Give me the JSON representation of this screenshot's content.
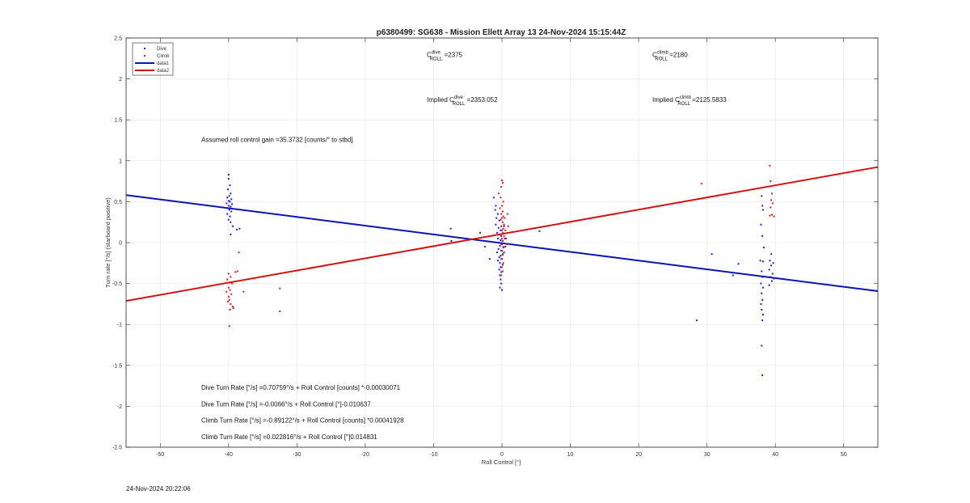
{
  "chart_data": {
    "type": "scatter",
    "title": "p6380499: SG638 - Mission Ellett Array 13 24-Nov-2024 15:15:44Z",
    "xlabel": "Roll Control [°]",
    "ylabel": "Turn rate [°/s] (starboard positive)",
    "xlim": [
      -55,
      55
    ],
    "ylim": [
      -2.5,
      2.5
    ],
    "xticks": [
      -50,
      -40,
      -30,
      -20,
      -10,
      0,
      10,
      20,
      30,
      40,
      50
    ],
    "yticks": [
      -2.5,
      -2,
      -1.5,
      -1,
      -0.5,
      0,
      0.5,
      1,
      1.5,
      2,
      2.5
    ],
    "xtick_labels": [
      "-50",
      "-40",
      "-30",
      "-20",
      "-10",
      "0",
      "10",
      "20",
      "30",
      "40",
      "50"
    ],
    "ytick_labels": [
      "-2.5",
      "-2",
      "-1.5",
      "-1",
      "-0.5",
      "0",
      "0.5",
      "1",
      "1.5",
      "2",
      "2.5"
    ],
    "grid": true,
    "legend_placement": "top-left",
    "series": [
      {
        "name": "Dive",
        "kind": "points",
        "color": "#1f1fd6",
        "points": [
          [
            -40,
            0.83
          ],
          [
            -40,
            0.78
          ],
          [
            -39.8,
            0.7
          ],
          [
            -40.1,
            0.65
          ],
          [
            -39.7,
            0.6
          ],
          [
            -39.9,
            0.57
          ],
          [
            -40.2,
            0.55
          ],
          [
            -39.6,
            0.53
          ],
          [
            -40,
            0.51
          ],
          [
            -39.8,
            0.5
          ],
          [
            -40.3,
            0.48
          ],
          [
            -39.5,
            0.47
          ],
          [
            -40,
            0.45
          ],
          [
            -39.7,
            0.44
          ],
          [
            -40.1,
            0.42
          ],
          [
            -39.9,
            0.4
          ],
          [
            -39.6,
            0.38
          ],
          [
            -40.2,
            0.35
          ],
          [
            -39.8,
            0.32
          ],
          [
            -40,
            0.28
          ],
          [
            -39.7,
            0.25
          ],
          [
            -39.4,
            0.2
          ],
          [
            -38.8,
            0.16
          ],
          [
            -39.7,
            0.1
          ],
          [
            -38.4,
            0.17
          ],
          [
            -7.5,
            0.17
          ],
          [
            -7.4,
            0.02
          ],
          [
            -3.2,
            0.12
          ],
          [
            -2.5,
            -0.05
          ],
          [
            -1.8,
            -0.2
          ],
          [
            -1.2,
            0.55
          ],
          [
            -0.9,
            0.45
          ],
          [
            -1,
            0.4
          ],
          [
            -0.6,
            0.35
          ],
          [
            -0.8,
            0.3
          ],
          [
            -0.4,
            0.27
          ],
          [
            -0.9,
            0.22
          ],
          [
            -0.5,
            0.18
          ],
          [
            -0.2,
            0.15
          ],
          [
            -0.7,
            0.12
          ],
          [
            -0.3,
            0.1
          ],
          [
            -0.1,
            0.08
          ],
          [
            -0.6,
            0.05
          ],
          [
            -0.2,
            0.03
          ],
          [
            0.1,
            0.02
          ],
          [
            -0.4,
            0
          ],
          [
            0,
            -0.02
          ],
          [
            -0.3,
            -0.04
          ],
          [
            0.2,
            -0.06
          ],
          [
            -0.5,
            -0.08
          ],
          [
            -0.1,
            -0.1
          ],
          [
            -0.7,
            -0.12
          ],
          [
            0.1,
            -0.14
          ],
          [
            -0.2,
            -0.16
          ],
          [
            -0.4,
            -0.18
          ],
          [
            0,
            -0.2
          ],
          [
            -0.6,
            -0.22
          ],
          [
            -0.3,
            -0.25
          ],
          [
            0.1,
            -0.27
          ],
          [
            -0.2,
            -0.3
          ],
          [
            -0.4,
            -0.33
          ],
          [
            -0.1,
            -0.36
          ],
          [
            -0.3,
            -0.4
          ],
          [
            -0.2,
            -0.45
          ],
          [
            -0.1,
            -0.5
          ],
          [
            -0.3,
            -0.55
          ],
          [
            0,
            -0.58
          ],
          [
            0.3,
            0.2
          ],
          [
            0.4,
            0.05
          ],
          [
            0.5,
            -0.05
          ],
          [
            0.3,
            -0.12
          ],
          [
            5.5,
            0.14
          ],
          [
            28.5,
            -0.95
          ],
          [
            30.7,
            -0.14
          ],
          [
            34.6,
            -0.26
          ],
          [
            33.8,
            -0.4
          ],
          [
            38,
            0.57
          ],
          [
            38.1,
            0.45
          ],
          [
            38.2,
            0.4
          ],
          [
            37.9,
            0.22
          ],
          [
            38.1,
            0.08
          ],
          [
            38.3,
            -0.06
          ],
          [
            37.8,
            -0.22
          ],
          [
            38.2,
            -0.23
          ],
          [
            38,
            -0.35
          ],
          [
            38.1,
            -0.42
          ],
          [
            37.9,
            -0.5
          ],
          [
            38.2,
            -0.55
          ],
          [
            38,
            -0.62
          ],
          [
            38.1,
            -0.7
          ],
          [
            37.9,
            -0.75
          ],
          [
            38,
            -0.82
          ],
          [
            38.2,
            -0.88
          ],
          [
            38.1,
            -0.95
          ],
          [
            38,
            -1.26
          ],
          [
            38.1,
            -1.62
          ],
          [
            39.2,
            -0.22
          ],
          [
            39.4,
            -0.28
          ],
          [
            39.1,
            -0.33
          ],
          [
            39.6,
            -0.38
          ],
          [
            39.3,
            -0.42
          ],
          [
            39.5,
            -0.47
          ],
          [
            39.1,
            -0.52
          ],
          [
            39.7,
            -0.25
          ],
          [
            39.4,
            -0.14
          ],
          [
            39.8,
            -0.44
          ]
        ]
      },
      {
        "name": "Climb",
        "kind": "points",
        "color": "#d61f1f",
        "points": [
          [
            -40,
            -0.38
          ],
          [
            -39.7,
            -0.42
          ],
          [
            -40.2,
            -0.45
          ],
          [
            -39.5,
            -0.5
          ],
          [
            -40,
            -0.55
          ],
          [
            -39.8,
            -0.58
          ],
          [
            -40.3,
            -0.6
          ],
          [
            -39.6,
            -0.63
          ],
          [
            -40,
            -0.66
          ],
          [
            -39.9,
            -0.7
          ],
          [
            -40.1,
            -0.72
          ],
          [
            -39.7,
            -0.75
          ],
          [
            -39.4,
            -0.78
          ],
          [
            -39.8,
            -0.82
          ],
          [
            -39.3,
            -0.8
          ],
          [
            -39.9,
            -1.02
          ],
          [
            -38.7,
            -0.35
          ],
          [
            -39.0,
            -0.36
          ],
          [
            -38.5,
            -0.12
          ],
          [
            -37.8,
            -0.6
          ],
          [
            -32.5,
            -0.56
          ],
          [
            -32.5,
            -0.84
          ],
          [
            -0.5,
            0.6
          ],
          [
            -0.2,
            0.55
          ],
          [
            0,
            0.76
          ],
          [
            0.1,
            0.73
          ],
          [
            -0.1,
            0.68
          ],
          [
            0.2,
            0.5
          ],
          [
            0,
            0.45
          ],
          [
            -0.3,
            0.42
          ],
          [
            0.1,
            0.38
          ],
          [
            -0.1,
            0.35
          ],
          [
            0.2,
            0.32
          ],
          [
            0,
            0.3
          ],
          [
            -0.2,
            0.28
          ],
          [
            0.1,
            0.25
          ],
          [
            0.3,
            0.22
          ],
          [
            -0.1,
            0.2
          ],
          [
            0.2,
            0.17
          ],
          [
            0,
            0.15
          ],
          [
            0.1,
            0.12
          ],
          [
            -0.2,
            0.1
          ],
          [
            0.3,
            0.08
          ],
          [
            0,
            0.05
          ],
          [
            0.1,
            0.02
          ],
          [
            -0.1,
            -0.02
          ],
          [
            0.2,
            -0.05
          ],
          [
            0,
            -0.1
          ],
          [
            0.1,
            -0.15
          ],
          [
            -0.1,
            -0.2
          ],
          [
            0.2,
            -0.25
          ],
          [
            0,
            -0.3
          ],
          [
            0.1,
            -0.35
          ],
          [
            -0.1,
            -0.4
          ],
          [
            0.4,
            0.3
          ],
          [
            0.5,
            0.15
          ],
          [
            0.6,
            0.05
          ],
          [
            0.8,
            0.35
          ],
          [
            0.9,
            0.2
          ],
          [
            0.7,
            -0.02
          ],
          [
            29.2,
            0.72
          ],
          [
            39.2,
            0.94
          ],
          [
            39.3,
            0.75
          ],
          [
            39.5,
            0.6
          ],
          [
            39.4,
            0.52
          ],
          [
            39.6,
            0.48
          ],
          [
            39.3,
            0.43
          ],
          [
            39.5,
            0.34
          ],
          [
            39.2,
            0.33
          ],
          [
            39.8,
            0.32
          ]
        ]
      },
      {
        "name": "data1",
        "kind": "line",
        "color": "#0a14b4",
        "x": [
          -55,
          55
        ],
        "y": [
          0.5804,
          -0.5934
        ]
      },
      {
        "name": "data2",
        "kind": "line",
        "color": "#d21414",
        "x": [
          -55,
          55
        ],
        "y": [
          -0.7125,
          0.9234
        ]
      }
    ],
    "annotations": [
      {
        "id": "c_dive",
        "prefix": "C",
        "sup": "dive",
        "sub": "ROLL",
        "text": " =2375",
        "x": -11,
        "y": 2.27
      },
      {
        "id": "c_climb",
        "prefix": "C",
        "sup": "climb",
        "sub": "ROLL",
        "text": " =2180",
        "x": 22,
        "y": 2.27
      },
      {
        "id": "implied_dive",
        "prefix": "Implied C",
        "sup": "dive",
        "sub": "ROLL",
        "text": " =2353.052",
        "x": -11,
        "y": 1.72
      },
      {
        "id": "implied_climb",
        "prefix": "Implied C",
        "sup": "climb",
        "sub": "ROLL",
        "text": " =2125.5833",
        "x": 22,
        "y": 1.72
      },
      {
        "id": "gain",
        "text": "Assumed roll control gain =35.3732 [counts/° to stbd]",
        "x": -44,
        "y": 1.23
      },
      {
        "id": "eq1",
        "text": "Dive Turn Rate [°/s] =0.70759°/s + Roll Control [counts] *-0.00030071",
        "x": -44,
        "y": -1.8
      },
      {
        "id": "eq2",
        "text": "Dive Turn Rate [°/s] =-0.0066°/s + Roll Control [°]-0.010637",
        "x": -44,
        "y": -2.0
      },
      {
        "id": "eq3",
        "text": "Climb Turn Rate [°/s] =-0.89122°/s + Roll Control [counts] *0.00041928",
        "x": -44,
        "y": -2.2
      },
      {
        "id": "eq4",
        "text": "Climb Turn Rate [°/s] =0.022816°/s + Roll Control [°]0.014831",
        "x": -44,
        "y": -2.4
      }
    ]
  },
  "footer": {
    "timestamp": "24-Nov-2024 20:22:06"
  }
}
